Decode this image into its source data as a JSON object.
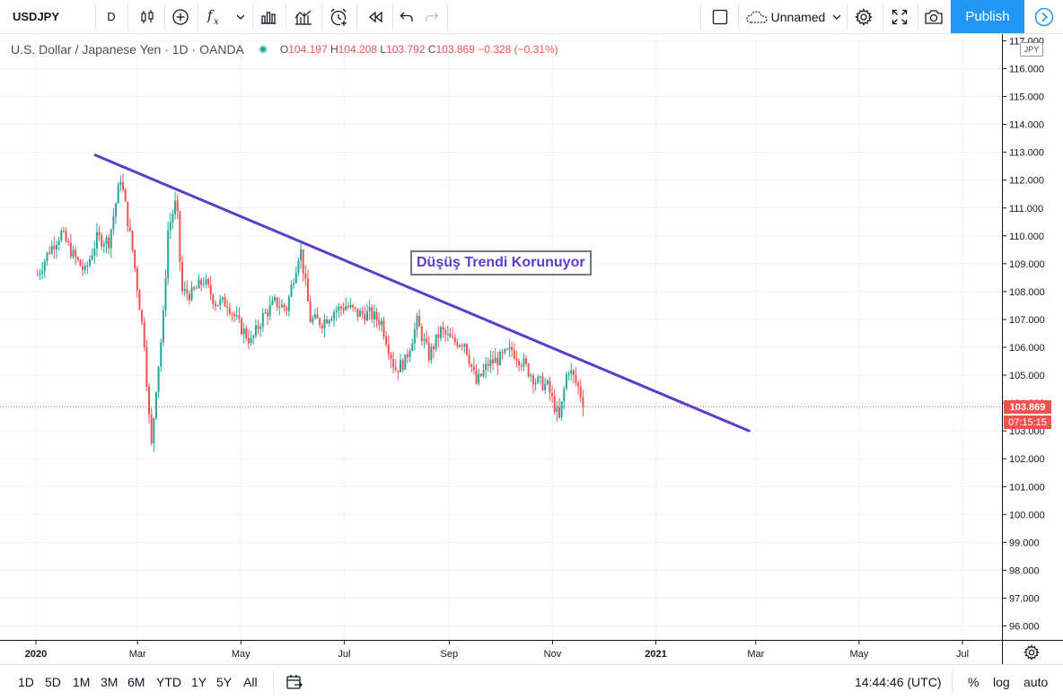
{
  "toolbar": {
    "symbol": "USDJPY",
    "interval": "D",
    "layout_name": "Unnamed",
    "publish_label": "Publish",
    "icons": [
      "bar-style-icon",
      "add-indicator-icon",
      "fx-icon",
      "chevron-down-icon",
      "templates-icon",
      "compare-icon",
      "alert-icon",
      "replay-icon",
      "undo-icon",
      "redo-icon",
      "fullscreen-square-icon",
      "cloud-icon",
      "settings-gear-icon",
      "fullscreen-icon",
      "camera-icon",
      "play-icon"
    ]
  },
  "legend": {
    "instrument": "U.S. Dollar / Japanese Yen · 1D · OANDA",
    "o_label": "O",
    "o_value": "104.197",
    "h_label": "H",
    "h_value": "104.208",
    "l_label": "L",
    "l_value": "103.792",
    "c_label": "C",
    "c_value": "103.869",
    "change": "−0.328 (−0.31%)"
  },
  "annotation": {
    "text": "Düşüş Trendi Korunuyor",
    "color": "#5b3ec8"
  },
  "price_axis": {
    "currency": "JPY",
    "last_price": "103.869",
    "countdown": "07:15:15"
  },
  "colors": {
    "up": "#26a69a",
    "down": "#ef5350",
    "trendline": "#5b3ec8",
    "accent": "#2196f3"
  },
  "bottom_bar": {
    "ranges": [
      "1D",
      "5D",
      "1M",
      "3M",
      "6M",
      "YTD",
      "1Y",
      "5Y",
      "All"
    ],
    "time": "14:44:46 (UTC)",
    "percent": "%",
    "log": "log",
    "auto": "auto"
  },
  "chart_data": {
    "type": "candlestick",
    "ylim": [
      95.5,
      117.0
    ],
    "y_ticks": [
      "96.000",
      "97.000",
      "98.000",
      "99.000",
      "100.000",
      "101.000",
      "102.000",
      "103.000",
      "104.000",
      "105.000",
      "106.000",
      "107.000",
      "108.000",
      "109.000",
      "110.000",
      "111.000",
      "112.000",
      "113.000",
      "114.000",
      "115.000",
      "116.000",
      "117.000"
    ],
    "x_ticks": [
      "2020",
      "Mar",
      "May",
      "Jul",
      "Sep",
      "Nov",
      "2021",
      "Mar",
      "May",
      "Jul"
    ],
    "x_bold": [
      "2020",
      "2021"
    ],
    "trendline": {
      "start": [
        "2020-02-05",
        112.9
      ],
      "end": [
        "2021-02-25",
        103.0
      ]
    },
    "price_line": 103.869,
    "closes": [
      [
        "2020-01-02",
        108.6
      ],
      [
        "2020-01-09",
        109.5
      ],
      [
        "2020-01-16",
        110.1
      ],
      [
        "2020-01-23",
        109.3
      ],
      [
        "2020-01-30",
        108.7
      ],
      [
        "2020-02-06",
        109.9
      ],
      [
        "2020-02-13",
        109.8
      ],
      [
        "2020-02-20",
        112.1
      ],
      [
        "2020-02-27",
        109.5
      ],
      [
        "2020-03-05",
        106.2
      ],
      [
        "2020-03-09",
        102.3
      ],
      [
        "2020-03-12",
        104.6
      ],
      [
        "2020-03-16",
        106.9
      ],
      [
        "2020-03-19",
        110.2
      ],
      [
        "2020-03-24",
        111.3
      ],
      [
        "2020-03-27",
        108.0
      ],
      [
        "2020-04-02",
        107.9
      ],
      [
        "2020-04-09",
        108.4
      ],
      [
        "2020-04-16",
        107.6
      ],
      [
        "2020-04-23",
        107.6
      ],
      [
        "2020-04-30",
        106.8
      ],
      [
        "2020-05-07",
        106.2
      ],
      [
        "2020-05-14",
        107.1
      ],
      [
        "2020-05-21",
        107.6
      ],
      [
        "2020-05-28",
        107.4
      ],
      [
        "2020-06-05",
        109.6
      ],
      [
        "2020-06-11",
        107.0
      ],
      [
        "2020-06-18",
        106.9
      ],
      [
        "2020-06-25",
        107.3
      ],
      [
        "2020-07-02",
        107.5
      ],
      [
        "2020-07-09",
        107.2
      ],
      [
        "2020-07-16",
        107.2
      ],
      [
        "2020-07-23",
        106.9
      ],
      [
        "2020-07-31",
        105.2
      ],
      [
        "2020-08-06",
        105.5
      ],
      [
        "2020-08-13",
        106.9
      ],
      [
        "2020-08-20",
        105.7
      ],
      [
        "2020-08-27",
        106.6
      ],
      [
        "2020-09-03",
        106.2
      ],
      [
        "2020-09-10",
        106.2
      ],
      [
        "2020-09-17",
        104.7
      ],
      [
        "2020-09-24",
        105.4
      ],
      [
        "2020-10-01",
        105.6
      ],
      [
        "2020-10-08",
        105.9
      ],
      [
        "2020-10-15",
        105.4
      ],
      [
        "2020-10-22",
        104.8
      ],
      [
        "2020-10-29",
        104.6
      ],
      [
        "2020-11-05",
        103.4
      ],
      [
        "2020-11-10",
        105.3
      ],
      [
        "2020-11-16",
        104.6
      ],
      [
        "2020-11-20",
        103.869
      ]
    ]
  }
}
